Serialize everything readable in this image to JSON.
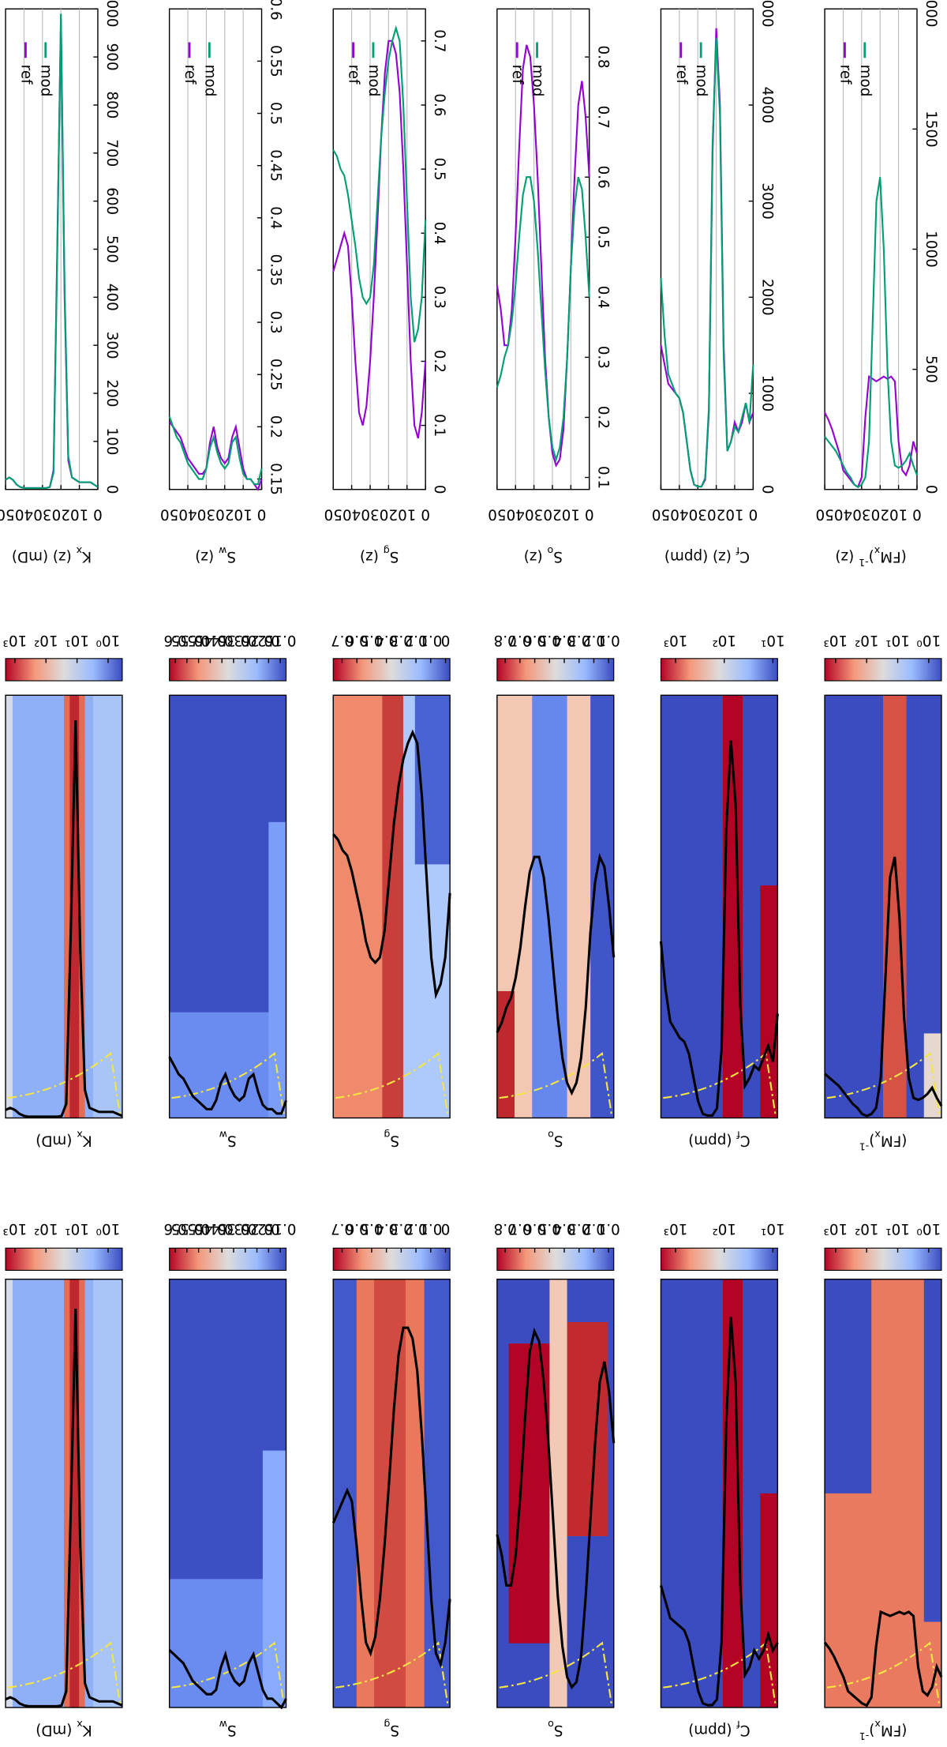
{
  "chart_data": [
    {
      "type": "line",
      "ylabel": [
        "K",
        {
          "text": "x",
          "script": "sub"
        },
        " (z) (mD)"
      ],
      "x": [
        0,
        2,
        4,
        6,
        8,
        10,
        12,
        14,
        16,
        18,
        20,
        22,
        24,
        26,
        28,
        30,
        32,
        34,
        36,
        38,
        40,
        42,
        44,
        46,
        48,
        50
      ],
      "xlim": [
        0,
        50
      ],
      "xticks": [
        0,
        10,
        20,
        30,
        40,
        50
      ],
      "ylim": [
        0,
        1000
      ],
      "yticks": [
        0,
        100,
        200,
        300,
        400,
        500,
        600,
        700,
        800,
        900,
        1000
      ],
      "grid": true,
      "series": [
        {
          "name": "ref",
          "color": "#9400d3",
          "values": [
            5,
            10,
            15,
            15,
            15,
            15,
            20,
            25,
            60,
            400,
            980,
            500,
            40,
            5,
            3,
            3,
            3,
            3,
            3,
            3,
            3,
            5,
            10,
            20,
            25,
            20
          ]
        },
        {
          "name": "mod",
          "color": "#009e73",
          "values": [
            5,
            10,
            15,
            15,
            15,
            15,
            20,
            25,
            70,
            420,
            990,
            480,
            35,
            5,
            3,
            3,
            3,
            3,
            3,
            3,
            3,
            5,
            10,
            20,
            25,
            20
          ]
        }
      ]
    },
    {
      "type": "line",
      "ylabel": [
        "S",
        {
          "text": "w",
          "script": "sub"
        },
        " (z)"
      ],
      "x": [
        0,
        2,
        4,
        6,
        8,
        10,
        12,
        14,
        16,
        18,
        20,
        22,
        24,
        26,
        28,
        30,
        32,
        34,
        36,
        38,
        40,
        42,
        44,
        46,
        48,
        50
      ],
      "xlim": [
        0,
        50
      ],
      "xticks": [
        0,
        10,
        20,
        30,
        40,
        50
      ],
      "ylim": [
        0.14,
        0.6
      ],
      "yticks": [
        0.15,
        0.2,
        0.25,
        0.3,
        0.35,
        0.4,
        0.45,
        0.5,
        0.55,
        0.6
      ],
      "grid": true,
      "series": [
        {
          "name": "ref",
          "color": "#9400d3",
          "values": [
            0.15,
            0.14,
            0.145,
            0.15,
            0.15,
            0.16,
            0.18,
            0.2,
            0.19,
            0.17,
            0.165,
            0.17,
            0.18,
            0.2,
            0.185,
            0.16,
            0.155,
            0.155,
            0.16,
            0.165,
            0.17,
            0.18,
            0.19,
            0.195,
            0.2,
            0.205
          ]
        },
        {
          "name": "mod",
          "color": "#009e73",
          "values": [
            0.16,
            0.145,
            0.145,
            0.15,
            0.15,
            0.155,
            0.17,
            0.19,
            0.185,
            0.165,
            0.16,
            0.165,
            0.175,
            0.19,
            0.18,
            0.16,
            0.15,
            0.15,
            0.155,
            0.16,
            0.165,
            0.175,
            0.185,
            0.19,
            0.2,
            0.21
          ]
        }
      ]
    },
    {
      "type": "line",
      "ylabel": [
        "S",
        {
          "text": "g",
          "script": "sub"
        },
        " (z)"
      ],
      "x": [
        0,
        2,
        4,
        6,
        8,
        10,
        12,
        14,
        16,
        18,
        20,
        22,
        24,
        26,
        28,
        30,
        32,
        34,
        36,
        38,
        40,
        42,
        44,
        46,
        48,
        50
      ],
      "xlim": [
        0,
        50
      ],
      "xticks": [
        0,
        10,
        20,
        30,
        40,
        50
      ],
      "ylim": [
        0,
        0.75
      ],
      "yticks": [
        0,
        0.1,
        0.2,
        0.3,
        0.4,
        0.5,
        0.6,
        0.7
      ],
      "grid": true,
      "series": [
        {
          "name": "ref",
          "color": "#9400d3",
          "values": [
            0.2,
            0.12,
            0.08,
            0.1,
            0.2,
            0.35,
            0.5,
            0.62,
            0.68,
            0.7,
            0.7,
            0.65,
            0.55,
            0.42,
            0.3,
            0.2,
            0.13,
            0.1,
            0.12,
            0.2,
            0.3,
            0.38,
            0.4,
            0.38,
            0.36,
            0.34
          ]
        },
        {
          "name": "mod",
          "color": "#009e73",
          "values": [
            0.42,
            0.3,
            0.25,
            0.23,
            0.3,
            0.45,
            0.6,
            0.7,
            0.72,
            0.7,
            0.67,
            0.62,
            0.55,
            0.45,
            0.35,
            0.3,
            0.29,
            0.3,
            0.33,
            0.38,
            0.42,
            0.46,
            0.49,
            0.5,
            0.52,
            0.53
          ]
        }
      ]
    },
    {
      "type": "line",
      "ylabel": [
        "S",
        {
          "text": "o",
          "script": "sub"
        },
        " (z)"
      ],
      "x": [
        0,
        2,
        4,
        6,
        8,
        10,
        12,
        14,
        16,
        18,
        20,
        22,
        24,
        26,
        28,
        30,
        32,
        34,
        36,
        38,
        40,
        42,
        44,
        46,
        48,
        50
      ],
      "xlim": [
        0,
        50
      ],
      "xticks": [
        0,
        10,
        20,
        30,
        40,
        50
      ],
      "ylim": [
        0.08,
        0.88
      ],
      "yticks": [
        0.1,
        0.2,
        0.3,
        0.4,
        0.5,
        0.6,
        0.7,
        0.8
      ],
      "grid": true,
      "series": [
        {
          "name": "ref",
          "color": "#9400d3",
          "values": [
            0.6,
            0.7,
            0.76,
            0.72,
            0.6,
            0.45,
            0.3,
            0.18,
            0.13,
            0.12,
            0.14,
            0.2,
            0.3,
            0.45,
            0.6,
            0.72,
            0.8,
            0.82,
            0.78,
            0.65,
            0.5,
            0.38,
            0.32,
            0.32,
            0.38,
            0.42
          ]
        },
        {
          "name": "mod",
          "color": "#009e73",
          "values": [
            0.4,
            0.5,
            0.58,
            0.6,
            0.55,
            0.45,
            0.3,
            0.2,
            0.15,
            0.13,
            0.15,
            0.2,
            0.28,
            0.38,
            0.48,
            0.56,
            0.6,
            0.6,
            0.57,
            0.5,
            0.42,
            0.36,
            0.32,
            0.3,
            0.27,
            0.25
          ]
        }
      ]
    },
    {
      "type": "line",
      "ylabel": [
        "C",
        {
          "text": "f",
          "script": "sub"
        },
        " (z) (ppm)"
      ],
      "x": [
        0,
        2,
        4,
        6,
        8,
        10,
        12,
        14,
        16,
        18,
        20,
        22,
        24,
        26,
        28,
        30,
        32,
        34,
        36,
        38,
        40,
        42,
        44,
        46,
        48,
        50
      ],
      "xlim": [
        0,
        50
      ],
      "xticks": [
        0,
        10,
        20,
        30,
        40,
        50
      ],
      "ylim": [
        0,
        5000
      ],
      "yticks": [
        0,
        1000,
        2000,
        3000,
        4000,
        5000
      ],
      "grid": true,
      "series": [
        {
          "name": "ref",
          "color": "#9400d3",
          "values": [
            800,
            700,
            900,
            700,
            600,
            700,
            500,
            400,
            1500,
            4000,
            4800,
            3500,
            800,
            100,
            30,
            30,
            50,
            200,
            500,
            800,
            950,
            1000,
            1050,
            1100,
            1300,
            1500
          ]
        },
        {
          "name": "mod",
          "color": "#009e73",
          "values": [
            1300,
            700,
            900,
            750,
            600,
            650,
            500,
            400,
            1400,
            3900,
            4700,
            3600,
            850,
            120,
            30,
            30,
            50,
            200,
            500,
            800,
            950,
            1000,
            1100,
            1200,
            1600,
            2200
          ]
        }
      ]
    },
    {
      "type": "line",
      "ylabel": [
        "(FM",
        {
          "text": "x",
          "script": "sub"
        },
        ")",
        {
          "text": "-1",
          "script": "super"
        },
        " (z)"
      ],
      "x": [
        0,
        2,
        4,
        6,
        8,
        10,
        12,
        14,
        16,
        18,
        20,
        22,
        24,
        26,
        28,
        30,
        32,
        34,
        36,
        38,
        40,
        42,
        44,
        46,
        48,
        50
      ],
      "xlim": [
        0,
        50
      ],
      "xticks": [
        0,
        10,
        20,
        30,
        40,
        50
      ],
      "ylim": [
        0,
        2000
      ],
      "yticks": [
        0,
        500,
        1000,
        1500,
        2000
      ],
      "grid": true,
      "series": [
        {
          "name": "ref",
          "color": "#9400d3",
          "values": [
            150,
            200,
            100,
            60,
            80,
            200,
            450,
            470,
            460,
            470,
            460,
            450,
            460,
            470,
            300,
            50,
            10,
            20,
            40,
            60,
            80,
            150,
            200,
            250,
            290,
            320
          ]
        },
        {
          "name": "mod",
          "color": "#009e73",
          "values": [
            60,
            100,
            150,
            120,
            100,
            90,
            100,
            200,
            500,
            1000,
            1300,
            1200,
            700,
            200,
            50,
            20,
            10,
            20,
            50,
            70,
            100,
            130,
            160,
            180,
            200,
            220
          ]
        }
      ]
    }
  ],
  "heatmaps": [
    {
      "label": [
        "K",
        {
          "text": "x",
          "script": "sub"
        },
        " (mD)"
      ],
      "colorbar": {
        "scale": "log",
        "clim": [
          0.35,
          2000
        ],
        "ticks": [
          {
            "value": 1000,
            "label": "10³"
          },
          {
            "value": 100,
            "label": "10²"
          },
          {
            "value": 10,
            "label": "10¹"
          },
          {
            "value": 1,
            "label": "10⁰"
          }
        ]
      }
    },
    {
      "label": [
        "S",
        {
          "text": "w",
          "script": "sub"
        }
      ],
      "colorbar": {
        "scale": "linear",
        "clim": [
          0.125,
          0.625
        ],
        "ticks": [
          0.6,
          0.55,
          0.5,
          0.45,
          0.4,
          0.35,
          0.3,
          0.25,
          0.2,
          0.15
        ]
      }
    },
    {
      "label": [
        "S",
        {
          "text": "g",
          "script": "sub"
        }
      ],
      "colorbar": {
        "scale": "linear",
        "clim": [
          -0.03,
          0.76
        ],
        "ticks": [
          0.7,
          0.6,
          0.5,
          0.4,
          0.3,
          0.2,
          0.1,
          0
        ]
      }
    },
    {
      "label": [
        "S",
        {
          "text": "o",
          "script": "sub"
        }
      ],
      "colorbar": {
        "scale": "linear",
        "clim": [
          0.065,
          0.855
        ],
        "ticks": [
          0.8,
          0.7,
          0.6,
          0.5,
          0.4,
          0.3,
          0.2,
          0.1
        ]
      }
    },
    {
      "label": [
        "C",
        {
          "text": "f",
          "script": "sub"
        },
        " (ppm)"
      ],
      "colorbar": {
        "scale": "log",
        "clim": [
          8,
          2000
        ],
        "ticks": [
          {
            "value": 1000,
            "label": "10³"
          },
          {
            "value": 100,
            "label": "10²"
          },
          {
            "value": 10,
            "label": "10¹"
          }
        ]
      }
    },
    {
      "label": [
        "(FM",
        {
          "text": "x",
          "script": "sub"
        },
        ")",
        {
          "text": "-1",
          "script": "super"
        }
      ],
      "colorbar": {
        "scale": "log",
        "clim": [
          0.39,
          2240
        ],
        "ticks": [
          {
            "value": 1000,
            "label": "10³"
          },
          {
            "value": 100,
            "label": "10²"
          },
          {
            "value": 10,
            "label": "10¹"
          },
          {
            "value": 1,
            "label": "10⁰"
          }
        ]
      }
    }
  ]
}
